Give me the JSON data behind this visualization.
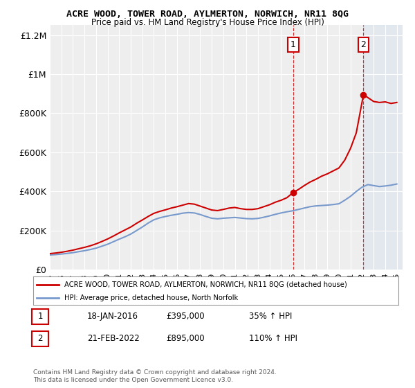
{
  "title": "ACRE WOOD, TOWER ROAD, AYLMERTON, NORWICH, NR11 8QG",
  "subtitle": "Price paid vs. HM Land Registry's House Price Index (HPI)",
  "legend_label_red": "ACRE WOOD, TOWER ROAD, AYLMERTON, NORWICH, NR11 8QG (detached house)",
  "legend_label_blue": "HPI: Average price, detached house, North Norfolk",
  "sale1_label": "1",
  "sale1_date": "18-JAN-2016",
  "sale1_price": "£395,000",
  "sale1_hpi": "35% ↑ HPI",
  "sale2_label": "2",
  "sale2_date": "21-FEB-2022",
  "sale2_price": "£895,000",
  "sale2_hpi": "110% ↑ HPI",
  "footnote": "Contains HM Land Registry data © Crown copyright and database right 2024.\nThis data is licensed under the Open Government Licence v3.0.",
  "ylim": [
    0,
    1250000
  ],
  "yticks": [
    0,
    200000,
    400000,
    600000,
    800000,
    1000000,
    1200000
  ],
  "ytick_labels": [
    "£0",
    "£200K",
    "£400K",
    "£600K",
    "£800K",
    "£1M",
    "£1.2M"
  ],
  "background_color": "#ffffff",
  "plot_bg_color": "#eeeeee",
  "grid_color": "#ffffff",
  "red_color": "#cc0000",
  "blue_color": "#7799cc",
  "shade_color": "#ccddf0",
  "sale1_x": 2016.05,
  "sale1_y": 395000,
  "sale2_x": 2022.12,
  "sale2_y": 895000,
  "vline1_x": 2016.05,
  "vline2_x": 2022.12,
  "xmin": 1995,
  "xmax": 2025.5,
  "hpi_years": [
    1995,
    1995.5,
    1996,
    1996.5,
    1997,
    1997.5,
    1998,
    1998.5,
    1999,
    1999.5,
    2000,
    2000.5,
    2001,
    2001.5,
    2002,
    2002.5,
    2003,
    2003.5,
    2004,
    2004.5,
    2005,
    2005.5,
    2006,
    2006.5,
    2007,
    2007.5,
    2008,
    2008.5,
    2009,
    2009.5,
    2010,
    2010.5,
    2011,
    2011.5,
    2012,
    2012.5,
    2013,
    2013.5,
    2014,
    2014.5,
    2015,
    2015.5,
    2016,
    2016.5,
    2017,
    2017.5,
    2018,
    2018.5,
    2019,
    2019.5,
    2020,
    2020.5,
    2021,
    2021.5,
    2022,
    2022.5,
    2023,
    2023.5,
    2024,
    2024.5,
    2025
  ],
  "hpi_values": [
    75000,
    77000,
    80000,
    83000,
    87000,
    92000,
    97000,
    103000,
    110000,
    120000,
    130000,
    143000,
    156000,
    168000,
    182000,
    200000,
    218000,
    238000,
    255000,
    265000,
    272000,
    278000,
    283000,
    289000,
    292000,
    290000,
    282000,
    272000,
    263000,
    260000,
    263000,
    265000,
    267000,
    264000,
    261000,
    260000,
    262000,
    268000,
    275000,
    283000,
    290000,
    296000,
    301000,
    308000,
    315000,
    322000,
    326000,
    328000,
    330000,
    333000,
    337000,
    355000,
    375000,
    400000,
    422000,
    435000,
    430000,
    425000,
    428000,
    432000,
    438000
  ],
  "prop_years": [
    1995,
    1995.5,
    1996,
    1996.5,
    1997,
    1997.5,
    1998,
    1998.5,
    1999,
    1999.5,
    2000,
    2000.5,
    2001,
    2001.5,
    2002,
    2002.5,
    2003,
    2003.5,
    2004,
    2004.5,
    2005,
    2005.5,
    2006,
    2006.5,
    2007,
    2007.5,
    2008,
    2008.5,
    2009,
    2009.5,
    2010,
    2010.5,
    2011,
    2011.5,
    2012,
    2012.5,
    2013,
    2013.5,
    2014,
    2014.5,
    2015,
    2015.5,
    2016.05,
    2016.5,
    2017,
    2017.5,
    2018,
    2018.5,
    2019,
    2019.5,
    2020,
    2020.5,
    2021,
    2021.5,
    2022.12,
    2022.5,
    2023,
    2023.5,
    2024,
    2024.5,
    2025
  ],
  "prop_values": [
    82000,
    85000,
    89000,
    94000,
    100000,
    107000,
    114000,
    122000,
    132000,
    144000,
    157000,
    172000,
    188000,
    203000,
    218000,
    237000,
    254000,
    272000,
    288000,
    298000,
    306000,
    315000,
    322000,
    330000,
    338000,
    335000,
    325000,
    315000,
    305000,
    302000,
    308000,
    315000,
    318000,
    312000,
    308000,
    308000,
    312000,
    322000,
    332000,
    345000,
    355000,
    368000,
    395000,
    410000,
    430000,
    448000,
    462000,
    478000,
    490000,
    505000,
    520000,
    560000,
    620000,
    700000,
    895000,
    880000,
    860000,
    855000,
    858000,
    850000,
    855000
  ]
}
